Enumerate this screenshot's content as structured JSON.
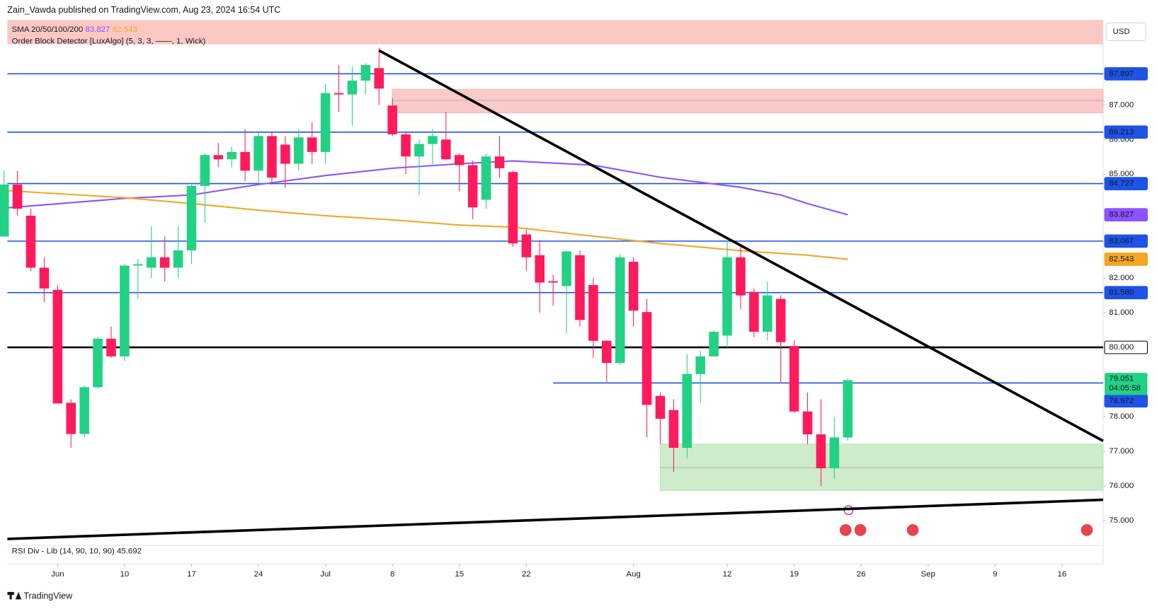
{
  "chart_data": {
    "type": "candlestick",
    "header": "Zain_Vawda published on TradingView.com, Aug 23, 2024 16:54 UTC",
    "indicator_sma": "SMA 20/50/100/200",
    "indicator_ob": "Order Block Detector [LuxAlgo] (5, 3, 3, ——, 1, Wick)",
    "indicator_rsi": "RSI Div - Lib (14, 90, 10, 90)",
    "rsi_value": 45.692,
    "currency": "USD",
    "footer": "TradingView",
    "up_color": "#22d184",
    "down_color": "#ff1a5c",
    "xlim": [
      -3.75,
      78.07
    ],
    "ylim": [
      74.28,
      89.45
    ],
    "xticks": [
      {
        "value": 0,
        "label": "Jun"
      },
      {
        "value": 5,
        "label": "10"
      },
      {
        "value": 10,
        "label": "17"
      },
      {
        "value": 15,
        "label": "24"
      },
      {
        "value": 20,
        "label": "Jul"
      },
      {
        "value": 25,
        "label": "8"
      },
      {
        "value": 30,
        "label": "15"
      },
      {
        "value": 35,
        "label": "22"
      },
      {
        "value": 43,
        "label": "Aug"
      },
      {
        "value": 50,
        "label": "12"
      },
      {
        "value": 55,
        "label": "19"
      },
      {
        "value": 60,
        "label": "26"
      },
      {
        "value": 65,
        "label": "Sep"
      },
      {
        "value": 70,
        "label": "9"
      },
      {
        "value": 75,
        "label": "16"
      }
    ],
    "yticks": [
      {
        "value": 87,
        "label": "87.000"
      },
      {
        "value": 86,
        "label": "86.000"
      },
      {
        "value": 85,
        "label": "85.000"
      },
      {
        "value": 82,
        "label": "82.000"
      },
      {
        "value": 81,
        "label": "81.000"
      },
      {
        "value": 78,
        "label": "78.000"
      },
      {
        "value": 77,
        "label": "77.000"
      },
      {
        "value": 76,
        "label": "76.000"
      },
      {
        "value": 75,
        "label": "75.000"
      }
    ],
    "x": [
      -4,
      -3,
      -2,
      -1,
      0,
      1,
      2,
      3,
      4,
      5,
      6,
      7,
      8,
      9,
      10,
      11,
      12,
      13,
      14,
      15,
      16,
      17,
      18,
      19,
      20,
      21,
      22,
      23,
      24,
      25,
      26,
      27,
      28,
      29,
      30,
      31,
      32,
      33,
      34,
      35,
      36,
      37,
      38,
      39,
      40,
      41,
      42,
      43,
      44,
      45,
      46,
      47,
      48,
      49,
      50,
      51,
      52,
      53,
      54,
      55,
      56,
      57,
      58,
      59
    ],
    "candles": {
      "open": [
        83.2,
        84.7,
        83.8,
        82.3,
        81.66,
        78.4,
        77.5,
        78.85,
        80.25,
        79.74,
        82.36,
        82.3,
        82.6,
        82.3,
        82.8,
        84.66,
        85.55,
        85.43,
        85.64,
        85.1,
        86.1,
        85.85,
        85.3,
        86.06,
        85.64,
        87.34,
        87.3,
        87.7,
        88.06,
        86.98,
        86.15,
        85.51,
        85.87,
        86.0,
        85.55,
        85.26,
        84.26,
        85.51,
        85.06,
        83.26,
        82.66,
        81.91,
        81.77,
        82.66,
        81.8,
        80.19,
        79.55,
        82.47,
        81.02,
        78.6,
        78.19,
        77.1,
        79.23,
        79.74,
        80.34,
        82.6,
        81.6,
        80.45,
        81.4,
        80.04,
        78.15,
        77.49,
        76.51,
        77.4
      ],
      "high": [
        85.1,
        85.1,
        84.0,
        82.6,
        81.8,
        78.5,
        78.9,
        80.3,
        80.6,
        82.4,
        82.55,
        83.5,
        83.2,
        83.5,
        84.7,
        85.6,
        85.9,
        85.8,
        86.3,
        86.2,
        86.2,
        86.1,
        86.3,
        86.5,
        87.6,
        88.15,
        88.1,
        88.2,
        88.65,
        87.2,
        86.2,
        86.0,
        86.3,
        86.8,
        85.6,
        85.4,
        85.6,
        86.1,
        85.1,
        83.4,
        83.1,
        82.1,
        82.8,
        82.8,
        82.0,
        80.2,
        82.7,
        82.6,
        81.4,
        78.7,
        78.5,
        79.8,
        79.9,
        80.5,
        83.1,
        82.9,
        81.7,
        81.9,
        81.5,
        80.2,
        78.7,
        78.5,
        78.0,
        79.1
      ],
      "low": [
        83.2,
        83.8,
        82.2,
        81.3,
        78.4,
        77.1,
        77.4,
        78.8,
        79.7,
        79.6,
        81.4,
        82.0,
        81.9,
        82.0,
        82.4,
        83.6,
        85.2,
        85.2,
        84.8,
        84.7,
        84.7,
        84.6,
        85.1,
        85.3,
        85.3,
        86.8,
        86.4,
        87.3,
        87.0,
        86.1,
        85.0,
        84.4,
        85.3,
        85.4,
        84.5,
        83.7,
        84.0,
        84.9,
        82.9,
        82.2,
        81.0,
        81.2,
        80.4,
        80.6,
        79.7,
        79.0,
        79.5,
        80.6,
        77.4,
        77.2,
        76.4,
        76.8,
        78.4,
        79.8,
        80.0,
        81.1,
        80.3,
        80.2,
        79.0,
        78.1,
        77.2,
        76.0,
        76.2,
        77.3
      ],
      "close": [
        84.7,
        84.0,
        82.3,
        81.7,
        78.38,
        77.5,
        78.85,
        80.25,
        79.74,
        82.36,
        82.4,
        82.6,
        82.3,
        82.8,
        84.66,
        85.55,
        85.43,
        85.64,
        85.1,
        86.1,
        84.9,
        85.3,
        86.06,
        85.64,
        87.34,
        87.3,
        87.7,
        88.15,
        87.47,
        86.15,
        85.51,
        85.87,
        86.1,
        85.43,
        85.26,
        84.04,
        85.51,
        85.17,
        83.0,
        82.6,
        81.87,
        81.87,
        82.77,
        80.79,
        80.19,
        79.55,
        82.6,
        81.06,
        78.34,
        77.94,
        77.1,
        79.23,
        79.74,
        80.45,
        82.6,
        81.5,
        80.45,
        81.5,
        80.15,
        78.15,
        77.49,
        76.51,
        77.4,
        79.051
      ]
    },
    "series": [
      {
        "color": "#8c52ff",
        "x": [
          -4,
          5,
          10,
          15,
          20,
          25,
          30,
          34,
          40,
          45,
          51,
          54,
          56,
          59
        ],
        "values": [
          84.02,
          84.3,
          84.4,
          84.7,
          84.96,
          85.17,
          85.3,
          85.38,
          85.26,
          84.91,
          84.62,
          84.4,
          84.15,
          83.827
        ]
      },
      {
        "color": "#f5a623",
        "x": [
          -4,
          5,
          10,
          15,
          20,
          25,
          30,
          34,
          40,
          45,
          51,
          56,
          59
        ],
        "values": [
          84.53,
          84.32,
          84.15,
          83.96,
          83.8,
          83.68,
          83.53,
          83.47,
          83.21,
          83.0,
          82.79,
          82.66,
          82.543
        ]
      }
    ],
    "hlines": [
      {
        "value": 87.897,
        "label": "87.897",
        "color": "#1e53e5"
      },
      {
        "value": 86.213,
        "label": "86.213",
        "color": "#1e53e5"
      },
      {
        "value": 84.727,
        "label": "84.727",
        "color": "#1e53e5"
      },
      {
        "value": 83.067,
        "label": "83.067",
        "color": "#1e53e5"
      },
      {
        "value": 81.58,
        "label": "81.580",
        "color": "#1e53e5"
      },
      {
        "value": 80,
        "label": "80.000",
        "color": "#000000"
      },
      {
        "value": 78.972,
        "label": "78.972",
        "color": "#1e53e5",
        "from": 37
      }
    ],
    "last_price": {
      "label": "79.051",
      "countdown": "04:05:58"
    },
    "trendlines": [
      {
        "x": [
          24,
          78.07
        ],
        "values": [
          88.57,
          77.3
        ]
      },
      {
        "x": [
          -3.75,
          78.07
        ],
        "values": [
          74.47,
          75.6
        ]
      }
    ],
    "order_blocks": [
      {
        "x": 25,
        "top": 87.45,
        "mid": 87.13,
        "bottom": 86.77,
        "color": "#f8b4b4"
      },
      {
        "x": 45,
        "top": 77.21,
        "mid": 76.53,
        "bottom": 75.87,
        "color": "#b9e3b5"
      }
    ]
  }
}
